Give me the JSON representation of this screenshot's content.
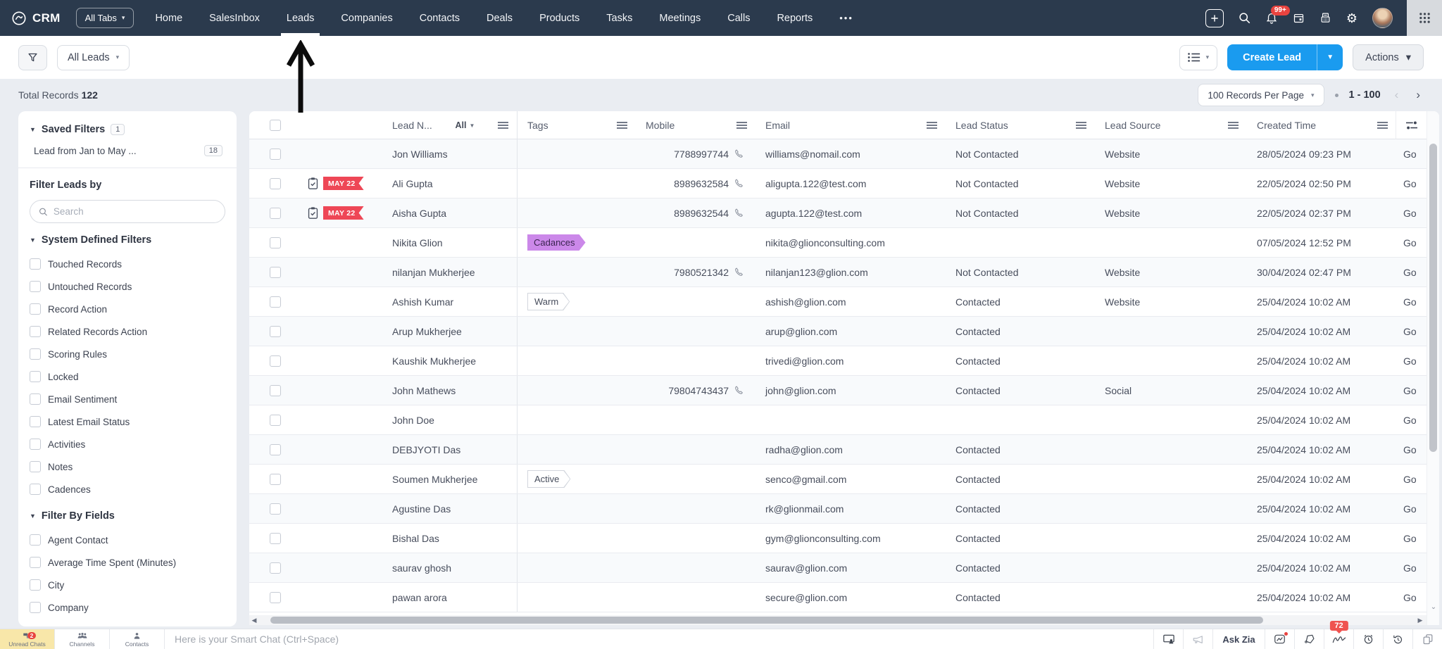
{
  "nav": {
    "brand": "CRM",
    "all_tabs_label": "All Tabs",
    "tabs": [
      "Home",
      "SalesInbox",
      "Leads",
      "Companies",
      "Contacts",
      "Deals",
      "Products",
      "Tasks",
      "Meetings",
      "Calls",
      "Reports"
    ],
    "active_tab": "Leads",
    "more_label": "•••",
    "notification_badge": "99+",
    "right_icons": [
      "add-icon",
      "search-icon",
      "bell-icon",
      "calendar-icon",
      "pos-terminal-icon",
      "gear-icon",
      "avatar",
      "apps-waffle-icon"
    ]
  },
  "toolbar": {
    "filter_view_label": "All Leads",
    "create_button_label": "Create Lead",
    "actions_button_label": "Actions"
  },
  "records_bar": {
    "total_label": "Total Records",
    "total_value": "122",
    "per_page_label": "100 Records Per Page",
    "range_label": "1 - 100"
  },
  "sidebar": {
    "saved_filters_label": "Saved Filters",
    "saved_filters_count": "1",
    "saved_filter_items": [
      {
        "label": "Lead from Jan to May ...",
        "count": "18"
      }
    ],
    "filter_title": "Filter Leads by",
    "search_placeholder": "Search",
    "system_filters_label": "System Defined Filters",
    "system_filters": [
      "Touched Records",
      "Untouched Records",
      "Record Action",
      "Related Records Action",
      "Scoring Rules",
      "Locked",
      "Email Sentiment",
      "Latest Email Status",
      "Activities",
      "Notes",
      "Cadences"
    ],
    "field_filters_label": "Filter By Fields",
    "field_filters": [
      "Agent Contact",
      "Average Time Spent (Minutes)",
      "City",
      "Company"
    ]
  },
  "table": {
    "columns": [
      "Lead N...",
      "Tags",
      "Mobile",
      "Email",
      "Lead Status",
      "Lead Source",
      "Created Time"
    ],
    "all_label": "All",
    "rows": [
      {
        "name": "Jon Williams",
        "ribbon": "",
        "tag": "",
        "tag_style": "",
        "mobile": "7788997744",
        "email": "williams@nomail.com",
        "status": "Not Contacted",
        "source": "Website",
        "created": "28/05/2024 09:23 PM",
        "owner": "Go"
      },
      {
        "name": "Ali Gupta",
        "ribbon": "MAY 22",
        "tag": "",
        "tag_style": "",
        "mobile": "8989632584",
        "email": "aligupta.122@test.com",
        "status": "Not Contacted",
        "source": "Website",
        "created": "22/05/2024 02:50 PM",
        "owner": "Go"
      },
      {
        "name": "Aisha Gupta",
        "ribbon": "MAY 22",
        "tag": "",
        "tag_style": "",
        "mobile": "8989632544",
        "email": "agupta.122@test.com",
        "status": "Not Contacted",
        "source": "Website",
        "created": "22/05/2024 02:37 PM",
        "owner": "Go"
      },
      {
        "name": "Nikita Glion",
        "ribbon": "",
        "tag": "Cadances",
        "tag_style": "purple",
        "mobile": "",
        "email": "nikita@glionconsulting.com",
        "status": "",
        "source": "",
        "created": "07/05/2024 12:52 PM",
        "owner": "Go"
      },
      {
        "name": "nilanjan Mukherjee",
        "ribbon": "",
        "tag": "",
        "tag_style": "",
        "mobile": "7980521342",
        "email": "nilanjan123@glion.com",
        "status": "Not Contacted",
        "source": "Website",
        "created": "30/04/2024 02:47 PM",
        "owner": "Go"
      },
      {
        "name": "Ashish Kumar",
        "ribbon": "",
        "tag": "Warm",
        "tag_style": "outline",
        "mobile": "",
        "email": "ashish@glion.com",
        "status": "Contacted",
        "source": "Website",
        "created": "25/04/2024 10:02 AM",
        "owner": "Go"
      },
      {
        "name": "Arup Mukherjee",
        "ribbon": "",
        "tag": "",
        "tag_style": "",
        "mobile": "",
        "email": "arup@glion.com",
        "status": "Contacted",
        "source": "",
        "created": "25/04/2024 10:02 AM",
        "owner": "Go"
      },
      {
        "name": "Kaushik Mukherjee",
        "ribbon": "",
        "tag": "",
        "tag_style": "",
        "mobile": "",
        "email": "trivedi@glion.com",
        "status": "Contacted",
        "source": "",
        "created": "25/04/2024 10:02 AM",
        "owner": "Go"
      },
      {
        "name": "John Mathews",
        "ribbon": "",
        "tag": "",
        "tag_style": "",
        "mobile": "79804743437",
        "email": "john@glion.com",
        "status": "Contacted",
        "source": "Social",
        "created": "25/04/2024 10:02 AM",
        "owner": "Go"
      },
      {
        "name": "John Doe",
        "ribbon": "",
        "tag": "",
        "tag_style": "",
        "mobile": "",
        "email": "",
        "status": "",
        "source": "",
        "created": "25/04/2024 10:02 AM",
        "owner": "Go"
      },
      {
        "name": "DEBJYOTI Das",
        "ribbon": "",
        "tag": "",
        "tag_style": "",
        "mobile": "",
        "email": "radha@glion.com",
        "status": "Contacted",
        "source": "",
        "created": "25/04/2024 10:02 AM",
        "owner": "Go"
      },
      {
        "name": "Soumen Mukherjee",
        "ribbon": "",
        "tag": "Active",
        "tag_style": "outline",
        "mobile": "",
        "email": "senco@gmail.com",
        "status": "Contacted",
        "source": "",
        "created": "25/04/2024 10:02 AM",
        "owner": "Go"
      },
      {
        "name": "Agustine Das",
        "ribbon": "",
        "tag": "",
        "tag_style": "",
        "mobile": "",
        "email": "rk@glionmail.com",
        "status": "Contacted",
        "source": "",
        "created": "25/04/2024 10:02 AM",
        "owner": "Go"
      },
      {
        "name": "Bishal Das",
        "ribbon": "",
        "tag": "",
        "tag_style": "",
        "mobile": "",
        "email": "gym@glionconsulting.com",
        "status": "Contacted",
        "source": "",
        "created": "25/04/2024 10:02 AM",
        "owner": "Go"
      },
      {
        "name": "saurav ghosh",
        "ribbon": "",
        "tag": "",
        "tag_style": "",
        "mobile": "",
        "email": "saurav@glion.com",
        "status": "Contacted",
        "source": "",
        "created": "25/04/2024 10:02 AM",
        "owner": "Go"
      },
      {
        "name": "pawan arora",
        "ribbon": "",
        "tag": "",
        "tag_style": "",
        "mobile": "",
        "email": "secure@glion.com",
        "status": "Contacted",
        "source": "",
        "created": "25/04/2024 10:02 AM",
        "owner": "Go"
      }
    ]
  },
  "footer": {
    "tabs": [
      {
        "label": "Unread Chats",
        "badge": "2",
        "icon": "chat-icon",
        "active": true
      },
      {
        "label": "Channels",
        "badge": "",
        "icon": "channels-icon",
        "active": false
      },
      {
        "label": "Contacts",
        "badge": "",
        "icon": "contact-icon",
        "active": false
      }
    ],
    "smart_chat_placeholder": "Here is your Smart Chat (Ctrl+Space)",
    "right_items": [
      {
        "name": "screen-share-icon",
        "label": "",
        "badge": "",
        "dot": false
      },
      {
        "name": "announcement-icon",
        "label": "",
        "badge": "",
        "dot": false
      },
      {
        "name": "ask-zia-button",
        "label": "Ask Zia",
        "badge": "",
        "dot": false
      },
      {
        "name": "analytics-icon",
        "label": "",
        "badge": "",
        "dot": true
      },
      {
        "name": "lasso-icon",
        "label": "",
        "badge": "",
        "dot": false
      },
      {
        "name": "zia-signature-icon",
        "label": "",
        "badge": "72",
        "dot": false
      },
      {
        "name": "alarm-icon",
        "label": "",
        "badge": "",
        "dot": false
      },
      {
        "name": "history-icon",
        "label": "",
        "badge": "",
        "dot": false
      },
      {
        "name": "copy-icon",
        "label": "",
        "badge": "",
        "dot": false
      }
    ]
  },
  "colors": {
    "nav_bg": "#2b3a4d",
    "accent_blue": "#1a9bef",
    "ribbon_red": "#ee4756",
    "tag_purple": "#cb88e9",
    "unread_tab_yellow": "#f8e7a9",
    "page_bg": "#eaedf2"
  }
}
